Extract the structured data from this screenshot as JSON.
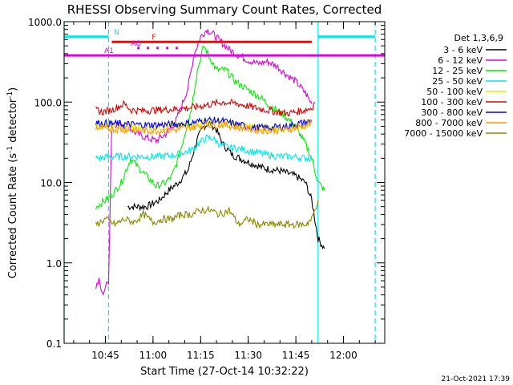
{
  "chart_data": {
    "type": "line",
    "title": "RHESSI Observing Summary Count Rates, Corrected",
    "xlabel": "Start Time (27-Oct-14 10:32:22)",
    "ylabel_main": "Corrected Count Rate (s",
    "ylabel_exp1": "-1",
    "ylabel_mid": " detector",
    "ylabel_exp2": "-1",
    "ylabel_end": ")",
    "yscale": "log",
    "ylim": [
      0.1,
      1000
    ],
    "xlim": [
      "10:32",
      "12:13"
    ],
    "x_ticks": [
      "10:45",
      "11:00",
      "11:15",
      "11:30",
      "11:45",
      "12:00"
    ],
    "y_ticks": [
      "0.1",
      "1.0",
      "10.0",
      "100.0",
      "1000.0"
    ],
    "legend_title": "Det 1,3,6,9",
    "footer": "21-Oct-2021 17:39",
    "grid": false,
    "series": [
      {
        "name": "3 - 6 keV",
        "color": "#000000",
        "points": [
          [
            "10:52",
            5
          ],
          [
            "10:58",
            5
          ],
          [
            "11:02",
            6
          ],
          [
            "11:05",
            8
          ],
          [
            "11:08",
            10
          ],
          [
            "11:11",
            14
          ],
          [
            "11:14",
            35
          ],
          [
            "11:16",
            50
          ],
          [
            "11:18",
            55
          ],
          [
            "11:20",
            45
          ],
          [
            "11:22",
            30
          ],
          [
            "11:25",
            22
          ],
          [
            "11:30",
            18
          ],
          [
            "11:35",
            15
          ],
          [
            "11:40",
            14
          ],
          [
            "11:45",
            12
          ],
          [
            "11:48",
            10
          ],
          [
            "11:50",
            6
          ],
          [
            "11:52",
            2
          ],
          [
            "11:54",
            1.5
          ]
        ]
      },
      {
        "name": "6 - 12 keV",
        "color": "#e000e0",
        "points": [
          [
            "10:42",
            0.5
          ],
          [
            "10:43",
            0.6
          ],
          [
            "10:44",
            0.4
          ],
          [
            "10:45",
            0.5
          ],
          [
            "10:46",
            0.6
          ],
          [
            "10:47",
            55
          ],
          [
            "10:52",
            50
          ],
          [
            "10:55",
            40
          ],
          [
            "10:58",
            36
          ],
          [
            "11:01",
            33
          ],
          [
            "11:04",
            40
          ],
          [
            "11:07",
            55
          ],
          [
            "11:09",
            90
          ],
          [
            "11:11",
            150
          ],
          [
            "11:13",
            400
          ],
          [
            "11:15",
            650
          ],
          [
            "11:17",
            800
          ],
          [
            "11:19",
            700
          ],
          [
            "11:21",
            580
          ],
          [
            "11:24",
            450
          ],
          [
            "11:27",
            380
          ],
          [
            "11:30",
            330
          ],
          [
            "11:33",
            300
          ],
          [
            "11:36",
            320
          ],
          [
            "11:39",
            280
          ],
          [
            "11:42",
            220
          ],
          [
            "11:45",
            180
          ],
          [
            "11:48",
            130
          ],
          [
            "11:50",
            95
          ]
        ]
      },
      {
        "name": "12 - 25 keV",
        "color": "#00ee00",
        "points": [
          [
            "10:42",
            5
          ],
          [
            "10:45",
            6
          ],
          [
            "10:47",
            7
          ],
          [
            "10:50",
            10
          ],
          [
            "10:53",
            20
          ],
          [
            "10:55",
            16
          ],
          [
            "10:58",
            12
          ],
          [
            "11:01",
            9
          ],
          [
            "11:04",
            10
          ],
          [
            "11:06",
            12
          ],
          [
            "11:08",
            20
          ],
          [
            "11:10",
            40
          ],
          [
            "11:12",
            80
          ],
          [
            "11:14",
            250
          ],
          [
            "11:16",
            500
          ],
          [
            "11:18",
            350
          ],
          [
            "11:20",
            250
          ],
          [
            "11:23",
            250
          ],
          [
            "11:26",
            180
          ],
          [
            "11:29",
            150
          ],
          [
            "11:33",
            120
          ],
          [
            "11:37",
            90
          ],
          [
            "11:41",
            70
          ],
          [
            "11:45",
            50
          ],
          [
            "11:48",
            30
          ],
          [
            "11:50",
            20
          ],
          [
            "11:52",
            10
          ],
          [
            "11:54",
            8
          ]
        ]
      },
      {
        "name": "25 - 50 keV",
        "color": "#00e8e8",
        "points": [
          [
            "10:42",
            20
          ],
          [
            "10:47",
            21
          ],
          [
            "10:52",
            21
          ],
          [
            "10:57",
            21
          ],
          [
            "11:02",
            21
          ],
          [
            "11:07",
            22
          ],
          [
            "11:12",
            25
          ],
          [
            "11:15",
            32
          ],
          [
            "11:17",
            36
          ],
          [
            "11:19",
            35
          ],
          [
            "11:21",
            30
          ],
          [
            "11:24",
            27
          ],
          [
            "11:28",
            26
          ],
          [
            "11:32",
            24
          ],
          [
            "11:36",
            22
          ],
          [
            "11:40",
            21
          ],
          [
            "11:44",
            21
          ],
          [
            "11:48",
            20
          ],
          [
            "11:50",
            20
          ]
        ]
      },
      {
        "name": "50 - 100 keV",
        "color": "#e8e800",
        "points": [
          [
            "10:42",
            50
          ],
          [
            "10:47",
            49
          ],
          [
            "10:52",
            48
          ],
          [
            "10:57",
            48
          ],
          [
            "11:02",
            49
          ],
          [
            "11:07",
            50
          ],
          [
            "11:12",
            52
          ],
          [
            "11:17",
            56
          ],
          [
            "11:22",
            55
          ],
          [
            "11:27",
            52
          ],
          [
            "11:32",
            48
          ],
          [
            "11:37",
            47
          ],
          [
            "11:42",
            47
          ],
          [
            "11:47",
            50
          ],
          [
            "11:50",
            55
          ]
        ]
      },
      {
        "name": "100 - 300 keV",
        "color": "#dd0000",
        "points": [
          [
            "10:42",
            80
          ],
          [
            "10:44",
            75
          ],
          [
            "10:47",
            80
          ],
          [
            "10:51",
            95
          ],
          [
            "10:53",
            80
          ],
          [
            "10:57",
            78
          ],
          [
            "11:02",
            80
          ],
          [
            "11:07",
            82
          ],
          [
            "11:12",
            85
          ],
          [
            "11:17",
            92
          ],
          [
            "11:22",
            100
          ],
          [
            "11:27",
            95
          ],
          [
            "11:32",
            85
          ],
          [
            "11:37",
            78
          ],
          [
            "11:42",
            72
          ],
          [
            "11:47",
            78
          ],
          [
            "11:50",
            85
          ],
          [
            "11:51",
            100
          ]
        ]
      },
      {
        "name": "300 - 800 keV",
        "color": "#0000ee",
        "points": [
          [
            "10:42",
            55
          ],
          [
            "10:47",
            54
          ],
          [
            "10:52",
            53
          ],
          [
            "10:57",
            52
          ],
          [
            "11:02",
            52
          ],
          [
            "11:07",
            53
          ],
          [
            "11:12",
            55
          ],
          [
            "11:17",
            60
          ],
          [
            "11:22",
            58
          ],
          [
            "11:27",
            52
          ],
          [
            "11:32",
            48
          ],
          [
            "11:37",
            48
          ],
          [
            "11:42",
            50
          ],
          [
            "11:47",
            55
          ],
          [
            "11:50",
            58
          ]
        ]
      },
      {
        "name": "800 - 7000 keV",
        "color": "#ff9900",
        "points": [
          [
            "10:42",
            48
          ],
          [
            "10:47",
            46
          ],
          [
            "10:52",
            45
          ],
          [
            "10:57",
            44
          ],
          [
            "11:02",
            44
          ],
          [
            "11:07",
            45
          ],
          [
            "11:12",
            48
          ],
          [
            "11:17",
            52
          ],
          [
            "11:22",
            52
          ],
          [
            "11:27",
            48
          ],
          [
            "11:32",
            45
          ],
          [
            "11:37",
            44
          ],
          [
            "11:42",
            45
          ],
          [
            "11:47",
            50
          ],
          [
            "11:50",
            55
          ]
        ]
      },
      {
        "name": "7000 - 15000 keV",
        "color": "#888800",
        "points": [
          [
            "10:42",
            3
          ],
          [
            "10:45",
            3.5
          ],
          [
            "10:48",
            3
          ],
          [
            "10:51",
            3.5
          ],
          [
            "10:54",
            3.2
          ],
          [
            "10:57",
            4
          ],
          [
            "11:00",
            3.2
          ],
          [
            "11:03",
            3.5
          ],
          [
            "11:06",
            3.5
          ],
          [
            "11:09",
            4
          ],
          [
            "11:12",
            4
          ],
          [
            "11:15",
            4.5
          ],
          [
            "11:18",
            4.5
          ],
          [
            "11:21",
            4
          ],
          [
            "11:24",
            4.5
          ],
          [
            "11:27",
            3
          ],
          [
            "11:30",
            3.5
          ],
          [
            "11:33",
            3
          ],
          [
            "11:36",
            3
          ],
          [
            "11:39",
            3
          ],
          [
            "11:42",
            3
          ],
          [
            "11:45",
            3
          ],
          [
            "11:48",
            3
          ],
          [
            "11:50",
            3.5
          ],
          [
            "11:52",
            6
          ]
        ]
      }
    ],
    "flags": [
      {
        "label": "N",
        "color": "#00e8e8",
        "ranges": [
          [
            "10:32",
            "10:46"
          ],
          [
            "11:52",
            "12:10"
          ]
        ],
        "level": 650,
        "style": "solid"
      },
      {
        "label": "F",
        "color": "#ff0000",
        "ranges": [
          [
            "10:47",
            "11:50"
          ]
        ],
        "level": 560,
        "style": "solid"
      },
      {
        "label": "AQ",
        "color": "#e000e0",
        "ranges": [
          [
            "10:55",
            "11:10"
          ]
        ],
        "level": 470,
        "style": "dotted"
      },
      {
        "label": "A1",
        "color": "#e000e0",
        "ranges": [
          [
            "10:32",
            "12:13"
          ]
        ],
        "level": 380,
        "style": "solid"
      }
    ],
    "vlines": [
      {
        "time": "10:32",
        "color": "#00e8e8",
        "style": "solid"
      },
      {
        "time": "10:46",
        "color": "#00e8e8",
        "style": "dashed"
      },
      {
        "time": "11:52",
        "color": "#00e8e8",
        "style": "solid"
      },
      {
        "time": "12:10",
        "color": "#00e8e8",
        "style": "dashed"
      }
    ]
  }
}
